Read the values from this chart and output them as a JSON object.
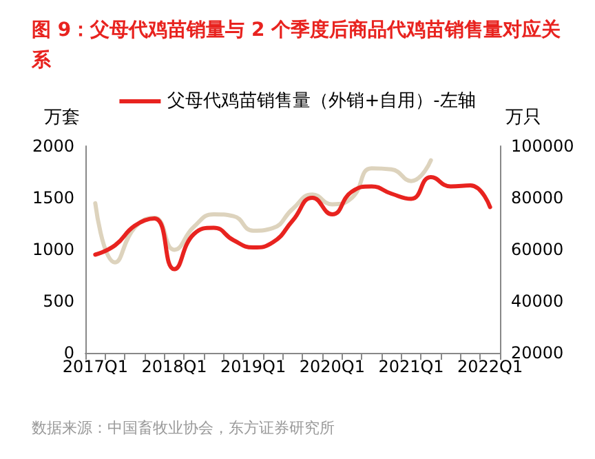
{
  "chart_data": {
    "type": "line",
    "title": "图 9：父母代鸡苗销量与 2 个季度后商品代鸡苗销售量对应关系",
    "ylabel": "万套",
    "y2label": "万只",
    "categories": [
      "2017Q1",
      null,
      null,
      null,
      "2018Q1",
      null,
      null,
      null,
      "2019Q1",
      null,
      null,
      null,
      "2020Q1",
      null,
      null,
      null,
      "2021Q1",
      null,
      null,
      null,
      "2022Q1"
    ],
    "series": [
      {
        "name": "父母代鸡苗销售量（外销+自用）-左轴",
        "color": "#e8231f",
        "values": [
          950,
          1040,
          1230,
          1300,
          810,
          1150,
          1210,
          1090,
          1020,
          1070,
          1280,
          1500,
          1340,
          1560,
          1610,
          1540,
          1490,
          1700,
          1610,
          1620,
          1410
        ]
      },
      {
        "color": "#ddd3bd",
        "axis": "y2",
        "values": [
          77900,
          55000,
          68500,
          72300,
          59900,
          68800,
          73600,
          72900,
          67300,
          68300,
          75700,
          81300,
          77500,
          80000,
          91400,
          91000,
          86500,
          94500,
          null,
          null,
          null
        ]
      }
    ],
    "ylim": [
      0,
      2000
    ],
    "yticks": [
      0,
      500,
      1000,
      1500,
      2000
    ],
    "y2lim": [
      20000,
      100000
    ],
    "y2ticks": [
      20000,
      40000,
      60000,
      80000,
      100000
    ],
    "grid": false,
    "legend": "top",
    "marker": "none",
    "line_style": "solid",
    "annotations": [
      "数据来源：中国畜牧业协会，东方证券研究所"
    ]
  }
}
